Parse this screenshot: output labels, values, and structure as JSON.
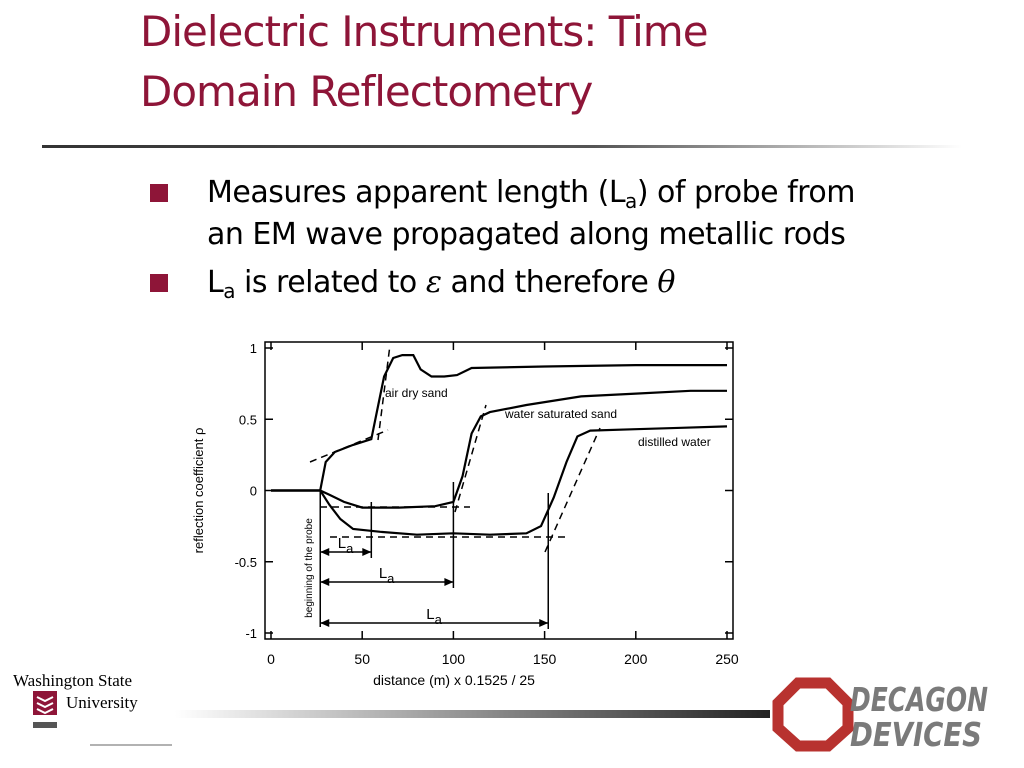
{
  "title": [
    "Dielectric Instruments: Time",
    "Domain Reflectometry"
  ],
  "bullets": [
    [
      {
        "text": "Measures apparent length (L"
      },
      {
        "text": "a",
        "sub": true
      },
      {
        "text": ") of probe from"
      },
      {
        "text": "an EM wave propagated along metallic rods",
        "newline": true
      }
    ],
    [
      {
        "text": "L"
      },
      {
        "text": "a",
        "sub": true
      },
      {
        "text": " is related to "
      },
      {
        "text": "ε",
        "italic": true
      },
      {
        "text": " and therefore "
      },
      {
        "text": "θ",
        "italic": true
      }
    ]
  ],
  "logos": {
    "university": [
      "Washington State",
      "University"
    ],
    "company": [
      "DECAGON",
      "DEVICES"
    ]
  },
  "chart_data": {
    "type": "line",
    "xlabel": "distance (m)  x 0.1525 / 25",
    "ylabel": "reflection coefficient ρ",
    "xlim": [
      0,
      250
    ],
    "ylim": [
      -1,
      1
    ],
    "xticks": [
      0,
      50,
      100,
      150,
      200,
      250
    ],
    "yticks": [
      1,
      0.5,
      0,
      -0.5,
      -1
    ],
    "grid": false,
    "probe_label": "beginning of the probe",
    "series": [
      {
        "name": "air dry sand",
        "color": "#000000",
        "x": [
          0,
          27,
          30,
          35,
          45,
          55,
          58,
          62,
          67,
          72,
          78,
          82,
          88,
          95,
          102,
          110,
          150,
          200,
          250
        ],
        "values": [
          0,
          0,
          0.2,
          0.27,
          0.32,
          0.36,
          0.55,
          0.8,
          0.93,
          0.95,
          0.95,
          0.85,
          0.8,
          0.8,
          0.81,
          0.86,
          0.87,
          0.88,
          0.88
        ]
      },
      {
        "name": "water saturated sand",
        "color": "#000000",
        "x": [
          0,
          27,
          32,
          40,
          50,
          70,
          90,
          100,
          105,
          110,
          115,
          120,
          140,
          170,
          200,
          230,
          250
        ],
        "values": [
          0,
          0,
          -0.03,
          -0.08,
          -0.12,
          -0.12,
          -0.11,
          -0.08,
          0.1,
          0.4,
          0.52,
          0.55,
          0.6,
          0.66,
          0.68,
          0.7,
          0.7
        ]
      },
      {
        "name": "distilled water",
        "color": "#000000",
        "x": [
          0,
          27,
          32,
          38,
          45,
          60,
          80,
          100,
          120,
          140,
          148,
          155,
          162,
          168,
          175,
          200,
          225,
          250
        ],
        "values": [
          0,
          0,
          -0.1,
          -0.2,
          -0.27,
          -0.29,
          -0.31,
          -0.3,
          -0.31,
          -0.3,
          -0.25,
          -0.05,
          0.2,
          0.38,
          0.42,
          0.43,
          0.44,
          0.45
        ]
      }
    ],
    "la_markers": [
      {
        "label": [
          "L",
          "a"
        ],
        "x": [
          27,
          55
        ]
      },
      {
        "label": [
          "L",
          "a"
        ],
        "x": [
          27,
          100
        ]
      },
      {
        "label": [
          "L",
          "a"
        ],
        "x": [
          27,
          152
        ]
      }
    ]
  }
}
